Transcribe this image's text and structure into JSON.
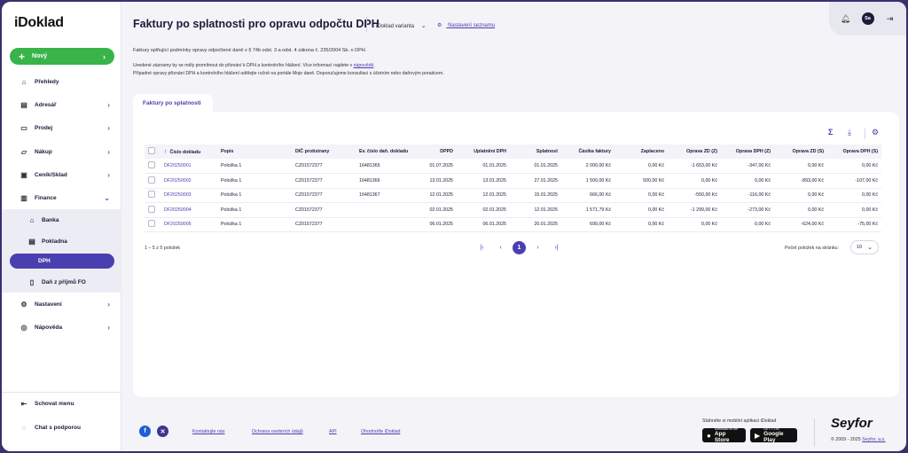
{
  "sidebar": {
    "logo": "iDoklad",
    "new_button": "Nový",
    "items": [
      {
        "label": "Přehledy",
        "icon": "home-icon"
      },
      {
        "label": "Adresář",
        "icon": "addressbook-icon"
      },
      {
        "label": "Prodej",
        "icon": "sale-icon"
      },
      {
        "label": "Nákup",
        "icon": "cart-icon"
      },
      {
        "label": "Ceník/Sklad",
        "icon": "box-icon"
      },
      {
        "label": "Finance",
        "icon": "wallet-icon"
      }
    ],
    "finance_sub": [
      {
        "label": "Banka",
        "icon": "bank-icon"
      },
      {
        "label": "Pokladna",
        "icon": "cashbox-icon"
      },
      {
        "label": "DPH",
        "icon": "tax-icon"
      },
      {
        "label": "Daň z příjmů FO",
        "icon": "document-icon"
      }
    ],
    "items_after": [
      {
        "label": "Nastavení",
        "icon": "gear-icon"
      },
      {
        "label": "Nápověda",
        "icon": "lifebuoy-icon"
      }
    ],
    "hide_menu": "Schovat menu",
    "support_chat": "Chat s podporou"
  },
  "header": {
    "title": "Faktury po splatnosti pro opravu odpočtu DPH",
    "variant": "iDoklad varianta",
    "list_settings": "Nastavení seznamu",
    "avatar_initials": "Sa"
  },
  "info": {
    "line1": "Faktury splňující podmínky opravy odpočtené daně v § 74b odst. 3 a odst. 4 zákona č. 235/2004 Sb. o DPH.",
    "line2_prefix": "Uvedené záznamy by se měly promítnout do přiznání k DPH a kontrolního hlášení. Více informací najdete v ",
    "line2_link": "nápovědě",
    "line2_suffix": ".",
    "line3": "Případné opravy přiznání DPH a kontrolního hlášení udělejte ručně na portále Moje daně. Doporučujeme konzultaci s účetním nebo daňovým poradcem."
  },
  "tab": "Faktury po splatnosti",
  "table": {
    "headers": [
      "Číslo dokladu",
      "Popis",
      "DIČ protistrany",
      "Ev. číslo daň. dokladu",
      "DPPD",
      "Uplatnění DPH",
      "Splatnost",
      "Částka faktury",
      "Zaplaceno",
      "Oprava ZD (Z)",
      "Oprava DPH (Z)",
      "Oprava ZD (S)",
      "Oprava DPH (S)"
    ],
    "rows": [
      [
        "DF20250001",
        "Položka 1",
        "CZ01572377",
        "16481365",
        "01.07.2025",
        "01.01.2025",
        "01.01.2025",
        "2 000,00 Kč",
        "0,00 Kč",
        "-1 653,00 Kč",
        "-347,00 Kč",
        "0,00 Kč",
        "0,00 Kč"
      ],
      [
        "DF20250002",
        "Položka 1",
        "CZ01572377",
        "16481366",
        "13.01.2025",
        "13.01.2025",
        "27.01.2025",
        "1 500,00 Kč",
        "500,00 Kč",
        "0,00 Kč",
        "0,00 Kč",
        "-893,00 Kč",
        "-107,00 Kč"
      ],
      [
        "DF20250003",
        "Položka 1",
        "CZ01572377",
        "16481367",
        "12.01.2025",
        "12.01.2025",
        "15.01.2025",
        "666,00 Kč",
        "0,00 Kč",
        "-550,00 Kč",
        "-116,00 Kč",
        "0,00 Kč",
        "0,00 Kč"
      ],
      [
        "DF20250004",
        "Položka 1",
        "CZ01572377",
        "",
        "02.01.2025",
        "02.01.2025",
        "12.01.2025",
        "1 571,79 Kč",
        "0,00 Kč",
        "-1 299,00 Kč",
        "-273,00 Kč",
        "0,00 Kč",
        "0,00 Kč"
      ],
      [
        "DF20250005",
        "Položka 1",
        "CZ01572377",
        "",
        "06.01.2025",
        "06.01.2025",
        "20.01.2025",
        "699,00 Kč",
        "0,00 Kč",
        "0,00 Kč",
        "0,00 Kč",
        "-624,00 Kč",
        "-75,00 Kč"
      ]
    ]
  },
  "pager": {
    "count": "1 – 5 z 5 položek",
    "current_page": "1",
    "per_page_label": "Počet položek na stránku:",
    "per_page": "10"
  },
  "footer": {
    "links": [
      "Kontaktujte nás",
      "Ochrana osobních údajů",
      "API",
      "Ohodnoťte iDoklad"
    ],
    "apps_label": "Stáhněte si mobilní aplikaci iDoklad",
    "appstore_small": "Download on the",
    "appstore_big": "App Store",
    "googleplay_small": "GET IT ON",
    "googleplay_big": "Google Play",
    "brand": "Seyfor",
    "copyright_prefix": "© 2009 - 2025 ",
    "copyright_link": "Seyfor, a.s."
  },
  "colors": {
    "accent": "#4a3fb0",
    "new_button": "#39b449",
    "frame": "#3b2f6e"
  }
}
